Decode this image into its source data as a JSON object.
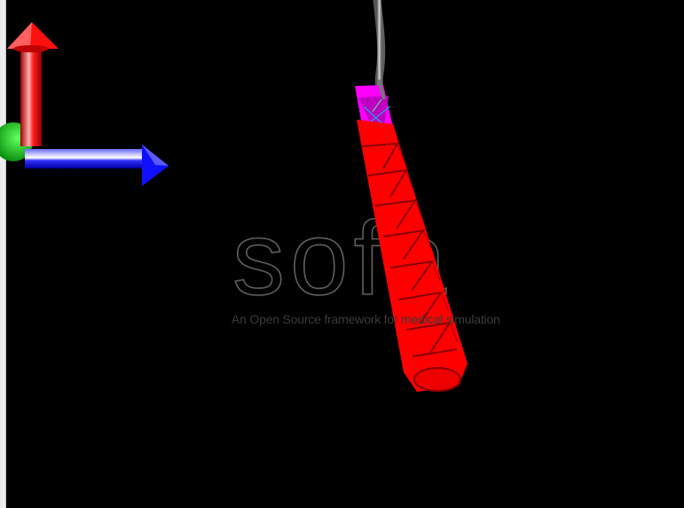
{
  "viewer": {
    "logo_text": "sofa",
    "tagline": "An Open Source framework for medical simulation"
  },
  "axes": {
    "x_color": "#1010ff",
    "y_color": "#ff1010",
    "z_color": "#10c010"
  },
  "scene": {
    "body_color": "#ff0000",
    "attached_segment_color": "#ff00ff",
    "cable_color": "#9a9a9a",
    "background": "#000000"
  }
}
